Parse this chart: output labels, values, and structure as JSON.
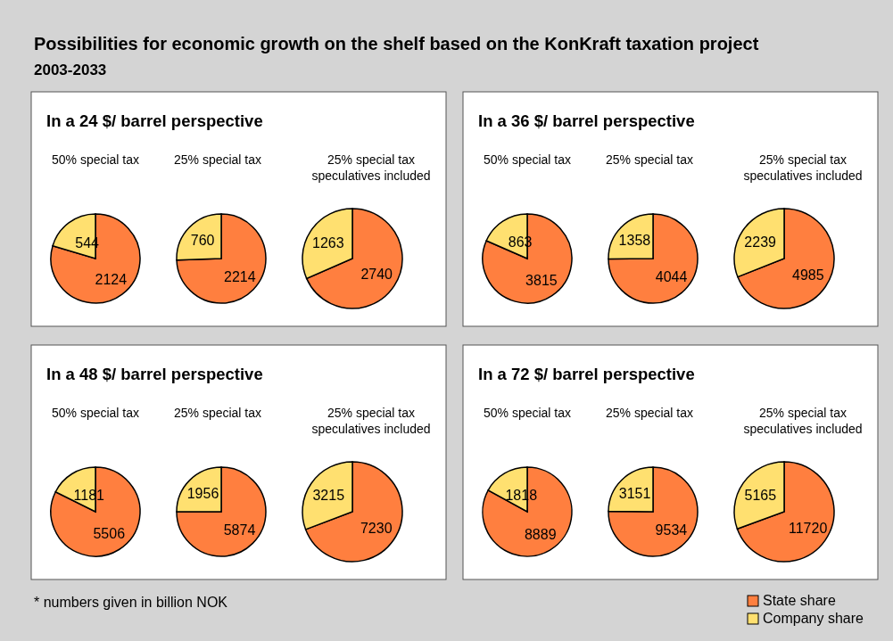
{
  "chart_data": [
    {
      "type": "other",
      "title": "Possibilities for economic growth on the shelf based on the KonKraft taxation project",
      "subtitle": "2003-2033",
      "annotations": [
        "* numbers given in billion NOK"
      ]
    },
    {
      "type": "pie",
      "title": "In a 24 $/ barrel perspective",
      "subtitle": "50% special tax",
      "categories": [
        null,
        null
      ],
      "values": [
        2124,
        544
      ],
      "colors": [
        "#ff7f3f",
        "#ffe070"
      ],
      "data_labels": true
    },
    {
      "type": "pie",
      "subtitle": "25% special tax",
      "categories": [
        null,
        null
      ],
      "values": [
        2214,
        760
      ],
      "colors": [
        "#ff7f3f",
        "#ffe070"
      ],
      "data_labels": true
    },
    {
      "type": "pie",
      "subtitle": "25% special tax speculatives included",
      "categories": [
        null,
        null
      ],
      "values": [
        2740,
        1263
      ],
      "colors": [
        "#ff7f3f",
        "#ffe070"
      ],
      "data_labels": true
    },
    {
      "type": "pie",
      "title": "In a 36 $/ barrel perspective",
      "subtitle": "50% special tax",
      "categories": [
        null,
        null
      ],
      "values": [
        3815,
        863
      ],
      "colors": [
        "#ff7f3f",
        "#ffe070"
      ],
      "data_labels": true
    },
    {
      "type": "pie",
      "subtitle": "25% special tax",
      "categories": [
        null,
        null
      ],
      "values": [
        4044,
        1358
      ],
      "colors": [
        "#ff7f3f",
        "#ffe070"
      ],
      "data_labels": true
    },
    {
      "type": "pie",
      "subtitle": "25% special tax speculatives included",
      "categories": [
        null,
        null
      ],
      "values": [
        4985,
        2239
      ],
      "colors": [
        "#ff7f3f",
        "#ffe070"
      ],
      "data_labels": true
    },
    {
      "type": "pie",
      "title": "In a 48 $/ barrel perspective",
      "subtitle": "50% special tax",
      "categories": [
        null,
        null
      ],
      "values": [
        5506,
        1181
      ],
      "colors": [
        "#ff7f3f",
        "#ffe070"
      ],
      "data_labels": true
    },
    {
      "type": "pie",
      "subtitle": "25% special tax",
      "categories": [
        null,
        null
      ],
      "values": [
        5874,
        1956
      ],
      "colors": [
        "#ff7f3f",
        "#ffe070"
      ],
      "data_labels": true
    },
    {
      "type": "pie",
      "subtitle": "25% special tax speculatives included",
      "categories": [
        null,
        null
      ],
      "values": [
        7230,
        3215
      ],
      "colors": [
        "#ff7f3f",
        "#ffe070"
      ],
      "data_labels": true
    },
    {
      "type": "pie",
      "title": "In a 72 $/ barrel perspective",
      "subtitle": "50% special tax",
      "categories": [
        null,
        null
      ],
      "values": [
        8889,
        1818
      ],
      "colors": [
        "#ff7f3f",
        "#ffe070"
      ],
      "data_labels": true
    },
    {
      "type": "pie",
      "subtitle": "25% special tax",
      "categories": [
        null,
        null
      ],
      "values": [
        9534,
        3151
      ],
      "colors": [
        "#ff7f3f",
        "#ffe070"
      ],
      "data_labels": true
    },
    {
      "type": "pie",
      "subtitle": "25% special tax speculatives included",
      "categories": [
        "State share",
        "Company share"
      ],
      "values": [
        11720,
        5165
      ],
      "colors": [
        "#ff7f3f",
        "#ffe070"
      ],
      "data_labels": true,
      "legend": "bottom right"
    }
  ]
}
